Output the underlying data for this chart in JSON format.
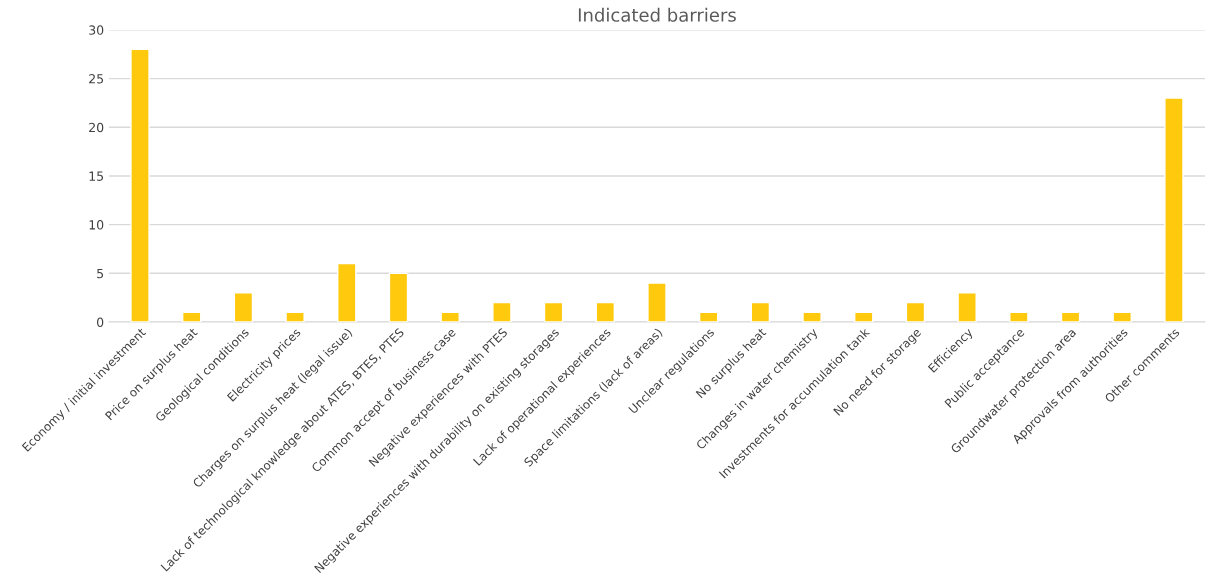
{
  "chart_data": {
    "type": "bar",
    "title": "Indicated barriers",
    "categories": [
      "Economy / initial investment",
      "Price on surplus heat",
      "Geological conditions",
      "Electricity prices",
      "Charges on surplus heat (legal issue)",
      "Lack of technological knowledge about ATES, BTES, PTES",
      "Common accept of business case",
      "Negative experiences with PTES",
      "Negative experiences with durability on existing storages",
      "Lack of operational experiences",
      "Space limitations (lack of areas)",
      "Unclear regulations",
      "No surplus heat",
      "Changes in water chemistry",
      "Investments for accumulation tank",
      "No need for storage",
      "Efficiency",
      "Public acceptance",
      "Groundwater protection area",
      "Approvals from authorities",
      "Other comments"
    ],
    "values": [
      28,
      1,
      3,
      1,
      6,
      5,
      1,
      2,
      2,
      2,
      4,
      1,
      2,
      1,
      1,
      2,
      3,
      1,
      1,
      1,
      23
    ],
    "color": "#ffc90e",
    "ylim": [
      0,
      30
    ],
    "yticks": [
      0,
      5,
      10,
      15,
      20,
      25,
      30
    ],
    "grid": "y"
  }
}
